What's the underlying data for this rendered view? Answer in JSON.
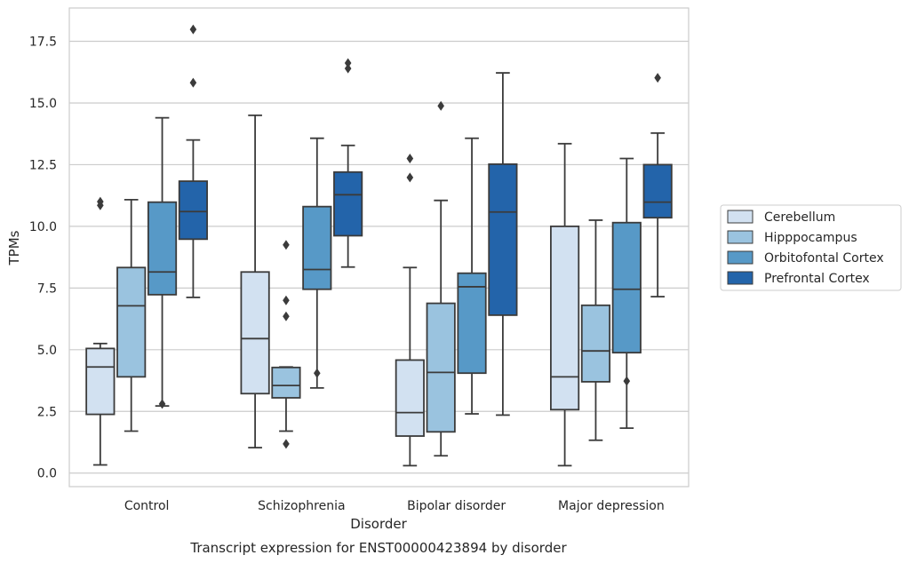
{
  "chart_data": {
    "type": "box",
    "caption": "Transcript expression for ENST00000423894 by disorder",
    "xlabel": "Disorder",
    "ylabel": "TPMs",
    "ylim": [
      -0.55,
      18.85
    ],
    "yticks": [
      0.0,
      2.5,
      5.0,
      7.5,
      10.0,
      12.5,
      15.0,
      17.5
    ],
    "ytick_labels": [
      "0.0",
      "2.5",
      "5.0",
      "7.5",
      "10.0",
      "12.5",
      "15.0",
      "17.5"
    ],
    "grid": "horizontal",
    "legend_position": "right",
    "categories": [
      "Control",
      "Schizophrenia",
      "Bipolar disorder",
      "Major depression"
    ],
    "series": [
      {
        "name": "Cerebellum",
        "color": "#d2e1f1",
        "boxes": [
          {
            "q1": 2.38,
            "median": 4.3,
            "q3": 5.05,
            "whisker_low": 0.33,
            "whisker_high": 5.25,
            "outliers": [
              10.85,
              11.0
            ]
          },
          {
            "q1": 3.22,
            "median": 5.45,
            "q3": 8.15,
            "whisker_low": 1.03,
            "whisker_high": 14.5,
            "outliers": []
          },
          {
            "q1": 1.5,
            "median": 2.45,
            "q3": 4.58,
            "whisker_low": 0.3,
            "whisker_high": 8.33,
            "outliers": [
              11.98,
              12.75
            ]
          },
          {
            "q1": 2.57,
            "median": 3.9,
            "q3": 10.0,
            "whisker_low": 0.3,
            "whisker_high": 13.35,
            "outliers": []
          }
        ]
      },
      {
        "name": "Hipppocampus",
        "color": "#9ac3df",
        "boxes": [
          {
            "q1": 3.9,
            "median": 6.78,
            "q3": 8.33,
            "whisker_low": 1.7,
            "whisker_high": 11.08,
            "outliers": []
          },
          {
            "q1": 3.05,
            "median": 3.55,
            "q3": 4.28,
            "whisker_low": 1.7,
            "whisker_high": 4.3,
            "outliers": [
              1.18,
              6.35,
              7.0,
              9.25
            ]
          },
          {
            "q1": 1.67,
            "median": 4.08,
            "q3": 6.88,
            "whisker_low": 0.7,
            "whisker_high": 11.05,
            "outliers": [
              14.88
            ]
          },
          {
            "q1": 3.7,
            "median": 4.95,
            "q3": 6.8,
            "whisker_low": 1.33,
            "whisker_high": 10.25,
            "outliers": []
          }
        ]
      },
      {
        "name": "Orbitofontal Cortex",
        "color": "#5799c7",
        "boxes": [
          {
            "q1": 7.23,
            "median": 8.15,
            "q3": 10.98,
            "whisker_low": 2.72,
            "whisker_high": 14.4,
            "outliers": [
              2.8
            ]
          },
          {
            "q1": 7.45,
            "median": 8.25,
            "q3": 10.8,
            "whisker_low": 3.45,
            "whisker_high": 13.57,
            "outliers": [
              4.05
            ]
          },
          {
            "q1": 4.05,
            "median": 7.55,
            "q3": 8.1,
            "whisker_low": 2.4,
            "whisker_high": 13.57,
            "outliers": []
          },
          {
            "q1": 4.88,
            "median": 7.45,
            "q3": 10.15,
            "whisker_low": 1.82,
            "whisker_high": 12.75,
            "outliers": [
              3.73
            ]
          }
        ]
      },
      {
        "name": "Prefrontal Cortex",
        "color": "#2364aa",
        "boxes": [
          {
            "q1": 9.48,
            "median": 10.6,
            "q3": 11.83,
            "whisker_low": 7.12,
            "whisker_high": 13.5,
            "outliers": [
              15.82,
              17.98
            ]
          },
          {
            "q1": 9.62,
            "median": 11.28,
            "q3": 12.2,
            "whisker_low": 8.35,
            "whisker_high": 13.28,
            "outliers": [
              16.4,
              16.62
            ]
          },
          {
            "q1": 6.4,
            "median": 10.58,
            "q3": 12.52,
            "whisker_low": 2.35,
            "whisker_high": 16.22,
            "outliers": []
          },
          {
            "q1": 10.35,
            "median": 10.98,
            "q3": 12.5,
            "whisker_low": 7.15,
            "whisker_high": 13.78,
            "outliers": [
              16.02
            ]
          }
        ]
      }
    ]
  }
}
